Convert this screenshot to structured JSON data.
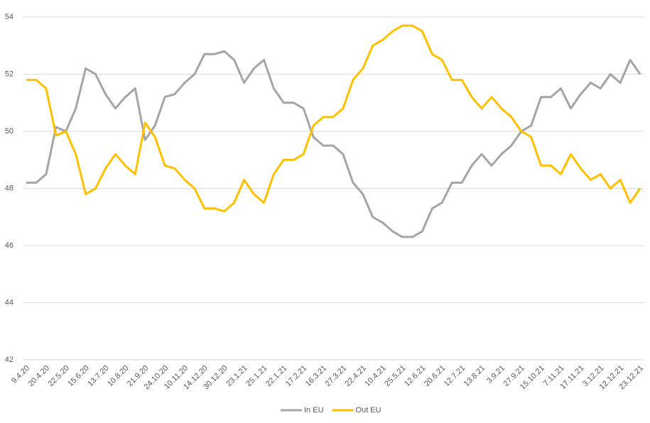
{
  "chart_data": {
    "type": "line",
    "categories": [
      "9.4.20",
      null,
      "20.4.20",
      null,
      "22.5.20",
      null,
      "15.6.20",
      null,
      "13.7.20",
      null,
      "10.8.20",
      null,
      "21.9.20",
      null,
      "24.10.20",
      null,
      "10.11.20",
      null,
      "14.12.20",
      null,
      "30.12.20",
      null,
      "23.1.21",
      null,
      "25.1.21",
      null,
      "22.1.21",
      null,
      "17.2.21",
      null,
      "16.3.21",
      null,
      "27.3.21",
      null,
      "22.4.21",
      null,
      "10.4.21",
      null,
      "25.5.21",
      null,
      "12.6.21",
      null,
      "20.6.21",
      null,
      "12.7.21",
      null,
      "13.8.21",
      null,
      "3.9.21",
      null,
      "27.9.21",
      null,
      "15.10.21",
      null,
      "7.11.21",
      null,
      "17.11.21",
      null,
      "3.12.21",
      null,
      "12.12.21",
      null,
      "23.12.21"
    ],
    "series": [
      {
        "name": "In EU",
        "color": "#a5a5a5",
        "values": [
          48.2,
          48.2,
          48.5,
          50.15,
          50,
          50.8,
          52.2,
          52,
          51.3,
          50.8,
          51.2,
          51.5,
          49.7,
          50.2,
          51.2,
          51.3,
          51.7,
          52,
          52.7,
          52.7,
          52.8,
          52.5,
          51.7,
          52.2,
          52.5,
          51.5,
          51,
          51,
          50.8,
          49.8,
          49.5,
          49.5,
          49.2,
          48.2,
          47.8,
          47,
          46.8,
          46.5,
          46.3,
          46.3,
          46.5,
          47.3,
          47.5,
          48.2,
          48.2,
          48.8,
          49.2,
          48.8,
          49.2,
          49.5,
          50,
          50.2,
          51.2,
          51.2,
          51.5,
          50.8,
          51.3,
          51.7,
          51.5,
          52,
          51.7,
          52.5,
          52
        ]
      },
      {
        "name": "Out EU",
        "color": "#ffc000",
        "values": [
          51.8,
          51.8,
          51.5,
          49.85,
          50,
          49.2,
          47.8,
          48,
          48.7,
          49.2,
          48.8,
          48.5,
          50.3,
          49.8,
          48.8,
          48.7,
          48.3,
          48,
          47.3,
          47.3,
          47.2,
          47.5,
          48.3,
          47.8,
          47.5,
          48.5,
          49,
          49,
          49.2,
          50.2,
          50.5,
          50.5,
          50.8,
          51.8,
          52.2,
          53,
          53.2,
          53.5,
          53.7,
          53.7,
          53.5,
          52.7,
          52.5,
          51.8,
          51.8,
          51.2,
          50.8,
          51.2,
          50.8,
          50.5,
          50,
          49.8,
          48.8,
          48.8,
          48.5,
          49.2,
          48.7,
          48.3,
          48.5,
          48,
          48.3,
          47.5,
          48
        ]
      }
    ],
    "ylim": [
      42,
      54
    ],
    "yticks": [
      42,
      44,
      46,
      48,
      50,
      52,
      54
    ],
    "grid": true,
    "legend": "bottom"
  }
}
